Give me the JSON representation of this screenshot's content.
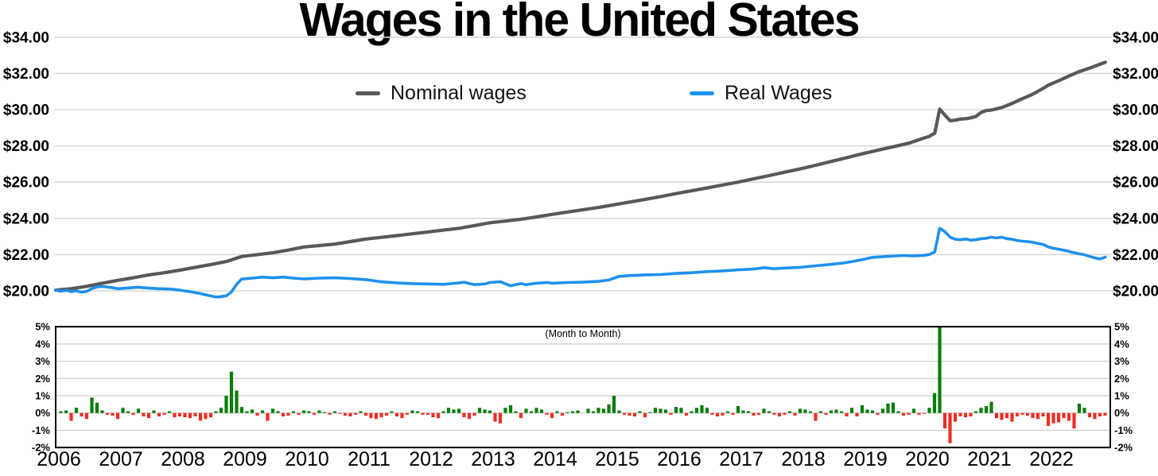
{
  "title": "Wages in the United States",
  "colors": {
    "nominal": "#58585a",
    "real": "#1e90ee",
    "positive": "#0a7d0a",
    "negative": "#ee2e24",
    "grid": "#d9d9d9",
    "bar_grid": "#cdcdcd",
    "border": "#000000"
  },
  "chart_data": [
    {
      "type": "line",
      "title": "Wages in the United States",
      "ylim": [
        20,
        34
      ],
      "x_range": [
        2006,
        2023
      ],
      "grid": "horizontal",
      "legend_position": "top-inside",
      "yticks": [
        {
          "v": 20,
          "label": "$20.00"
        },
        {
          "v": 22,
          "label": "$22.00"
        },
        {
          "v": 24,
          "label": "$24.00"
        },
        {
          "v": 26,
          "label": "$26.00"
        },
        {
          "v": 28,
          "label": "$28.00"
        },
        {
          "v": 30,
          "label": "$30.00"
        },
        {
          "v": 32,
          "label": "$32.00"
        },
        {
          "v": 34,
          "label": "$34.00"
        }
      ],
      "years": [
        2006,
        2007,
        2008,
        2009,
        2010,
        2011,
        2012,
        2013,
        2014,
        2015,
        2016,
        2017,
        2018,
        2019,
        2020,
        2021,
        2022
      ],
      "series": [
        {
          "name": "Nominal wages",
          "color": "nominal",
          "anchors": [
            [
              2006.0,
              20.04
            ],
            [
              2006.25,
              20.12
            ],
            [
              2006.5,
              20.25
            ],
            [
              2006.75,
              20.42
            ],
            [
              2007.0,
              20.58
            ],
            [
              2007.25,
              20.72
            ],
            [
              2007.5,
              20.88
            ],
            [
              2007.75,
              21.0
            ],
            [
              2008.0,
              21.14
            ],
            [
              2008.25,
              21.3
            ],
            [
              2008.5,
              21.45
            ],
            [
              2008.75,
              21.62
            ],
            [
              2009.0,
              21.9
            ],
            [
              2009.25,
              22.0
            ],
            [
              2009.5,
              22.1
            ],
            [
              2009.75,
              22.25
            ],
            [
              2010.0,
              22.42
            ],
            [
              2010.25,
              22.5
            ],
            [
              2010.5,
              22.58
            ],
            [
              2010.75,
              22.72
            ],
            [
              2011.0,
              22.86
            ],
            [
              2011.25,
              22.95
            ],
            [
              2011.5,
              23.05
            ],
            [
              2011.75,
              23.15
            ],
            [
              2012.0,
              23.25
            ],
            [
              2012.25,
              23.35
            ],
            [
              2012.5,
              23.45
            ],
            [
              2012.75,
              23.6
            ],
            [
              2013.0,
              23.76
            ],
            [
              2013.25,
              23.85
            ],
            [
              2013.5,
              23.95
            ],
            [
              2013.75,
              24.08
            ],
            [
              2014.0,
              24.22
            ],
            [
              2014.25,
              24.35
            ],
            [
              2014.5,
              24.48
            ],
            [
              2014.75,
              24.6
            ],
            [
              2015.0,
              24.75
            ],
            [
              2015.25,
              24.9
            ],
            [
              2015.5,
              25.05
            ],
            [
              2015.75,
              25.2
            ],
            [
              2016.0,
              25.37
            ],
            [
              2016.25,
              25.52
            ],
            [
              2016.5,
              25.68
            ],
            [
              2016.75,
              25.84
            ],
            [
              2017.0,
              26.0
            ],
            [
              2017.25,
              26.18
            ],
            [
              2017.5,
              26.36
            ],
            [
              2017.75,
              26.55
            ],
            [
              2018.0,
              26.73
            ],
            [
              2018.25,
              26.93
            ],
            [
              2018.5,
              27.14
            ],
            [
              2018.75,
              27.35
            ],
            [
              2019.0,
              27.56
            ],
            [
              2019.25,
              27.76
            ],
            [
              2019.5,
              27.95
            ],
            [
              2019.75,
              28.15
            ],
            [
              2020.0,
              28.44
            ],
            [
              2020.08,
              28.52
            ],
            [
              2020.17,
              28.7
            ],
            [
              2020.25,
              30.03
            ],
            [
              2020.33,
              29.72
            ],
            [
              2020.42,
              29.38
            ],
            [
              2020.5,
              29.42
            ],
            [
              2020.58,
              29.48
            ],
            [
              2020.67,
              29.5
            ],
            [
              2020.75,
              29.55
            ],
            [
              2020.83,
              29.62
            ],
            [
              2020.92,
              29.85
            ],
            [
              2021.0,
              29.95
            ],
            [
              2021.08,
              29.98
            ],
            [
              2021.17,
              30.05
            ],
            [
              2021.25,
              30.12
            ],
            [
              2021.42,
              30.35
            ],
            [
              2021.58,
              30.6
            ],
            [
              2021.75,
              30.85
            ],
            [
              2021.92,
              31.18
            ],
            [
              2022.0,
              31.35
            ],
            [
              2022.17,
              31.6
            ],
            [
              2022.33,
              31.85
            ],
            [
              2022.5,
              32.1
            ],
            [
              2022.67,
              32.3
            ],
            [
              2022.83,
              32.5
            ],
            [
              2022.92,
              32.62
            ]
          ]
        },
        {
          "name": "Real Wages",
          "color": "real",
          "anchors": [
            [
              2006.0,
              20.04
            ],
            [
              2006.08,
              19.98
            ],
            [
              2006.17,
              20.03
            ],
            [
              2006.25,
              19.95
            ],
            [
              2006.33,
              20.0
            ],
            [
              2006.42,
              19.93
            ],
            [
              2006.5,
              19.97
            ],
            [
              2006.58,
              20.12
            ],
            [
              2006.67,
              20.22
            ],
            [
              2006.75,
              20.24
            ],
            [
              2006.83,
              20.21
            ],
            [
              2006.92,
              20.17
            ],
            [
              2007.0,
              20.12
            ],
            [
              2007.17,
              20.16
            ],
            [
              2007.33,
              20.2
            ],
            [
              2007.5,
              20.15
            ],
            [
              2007.67,
              20.12
            ],
            [
              2007.83,
              20.1
            ],
            [
              2008.0,
              20.04
            ],
            [
              2008.17,
              19.95
            ],
            [
              2008.33,
              19.85
            ],
            [
              2008.5,
              19.72
            ],
            [
              2008.58,
              19.66
            ],
            [
              2008.67,
              19.68
            ],
            [
              2008.75,
              19.73
            ],
            [
              2008.83,
              19.92
            ],
            [
              2008.92,
              20.38
            ],
            [
              2009.0,
              20.65
            ],
            [
              2009.17,
              20.7
            ],
            [
              2009.33,
              20.76
            ],
            [
              2009.5,
              20.72
            ],
            [
              2009.67,
              20.76
            ],
            [
              2009.83,
              20.7
            ],
            [
              2010.0,
              20.66
            ],
            [
              2010.25,
              20.7
            ],
            [
              2010.5,
              20.72
            ],
            [
              2010.75,
              20.68
            ],
            [
              2011.0,
              20.62
            ],
            [
              2011.25,
              20.5
            ],
            [
              2011.5,
              20.44
            ],
            [
              2011.75,
              20.4
            ],
            [
              2012.0,
              20.38
            ],
            [
              2012.25,
              20.36
            ],
            [
              2012.5,
              20.44
            ],
            [
              2012.58,
              20.48
            ],
            [
              2012.75,
              20.34
            ],
            [
              2012.92,
              20.38
            ],
            [
              2013.0,
              20.46
            ],
            [
              2013.17,
              20.5
            ],
            [
              2013.33,
              20.28
            ],
            [
              2013.5,
              20.4
            ],
            [
              2013.58,
              20.34
            ],
            [
              2013.75,
              20.42
            ],
            [
              2013.92,
              20.46
            ],
            [
              2014.0,
              20.42
            ],
            [
              2014.25,
              20.46
            ],
            [
              2014.5,
              20.48
            ],
            [
              2014.75,
              20.52
            ],
            [
              2014.92,
              20.6
            ],
            [
              2015.08,
              20.8
            ],
            [
              2015.25,
              20.84
            ],
            [
              2015.5,
              20.88
            ],
            [
              2015.75,
              20.9
            ],
            [
              2016.0,
              20.96
            ],
            [
              2016.25,
              21.0
            ],
            [
              2016.5,
              21.06
            ],
            [
              2016.75,
              21.1
            ],
            [
              2017.0,
              21.16
            ],
            [
              2017.25,
              21.2
            ],
            [
              2017.42,
              21.28
            ],
            [
              2017.58,
              21.22
            ],
            [
              2017.75,
              21.26
            ],
            [
              2018.0,
              21.3
            ],
            [
              2018.25,
              21.38
            ],
            [
              2018.5,
              21.46
            ],
            [
              2018.75,
              21.56
            ],
            [
              2019.0,
              21.72
            ],
            [
              2019.17,
              21.85
            ],
            [
              2019.33,
              21.88
            ],
            [
              2019.5,
              21.92
            ],
            [
              2019.67,
              21.95
            ],
            [
              2019.83,
              21.93
            ],
            [
              2020.0,
              21.96
            ],
            [
              2020.08,
              22.0
            ],
            [
              2020.17,
              22.15
            ],
            [
              2020.25,
              23.45
            ],
            [
              2020.33,
              23.28
            ],
            [
              2020.42,
              22.95
            ],
            [
              2020.5,
              22.85
            ],
            [
              2020.58,
              22.82
            ],
            [
              2020.67,
              22.86
            ],
            [
              2020.75,
              22.8
            ],
            [
              2020.83,
              22.82
            ],
            [
              2020.92,
              22.88
            ],
            [
              2021.0,
              22.9
            ],
            [
              2021.08,
              22.96
            ],
            [
              2021.17,
              22.92
            ],
            [
              2021.25,
              22.96
            ],
            [
              2021.33,
              22.88
            ],
            [
              2021.42,
              22.84
            ],
            [
              2021.5,
              22.78
            ],
            [
              2021.58,
              22.74
            ],
            [
              2021.67,
              22.72
            ],
            [
              2021.75,
              22.68
            ],
            [
              2021.83,
              22.62
            ],
            [
              2021.92,
              22.56
            ],
            [
              2022.0,
              22.42
            ],
            [
              2022.08,
              22.35
            ],
            [
              2022.17,
              22.3
            ],
            [
              2022.25,
              22.24
            ],
            [
              2022.33,
              22.18
            ],
            [
              2022.42,
              22.1
            ],
            [
              2022.5,
              22.04
            ],
            [
              2022.58,
              22.0
            ],
            [
              2022.67,
              21.9
            ],
            [
              2022.75,
              21.82
            ],
            [
              2022.83,
              21.76
            ],
            [
              2022.92,
              21.86
            ]
          ]
        }
      ]
    },
    {
      "type": "bar",
      "title": "(Month to Month)",
      "start_month": "2006-02",
      "frequency": "monthly",
      "ylim": [
        -2,
        5
      ],
      "yticks": [
        {
          "v": 5,
          "label": "5%"
        },
        {
          "v": 4,
          "label": "4%"
        },
        {
          "v": 3,
          "label": "3%"
        },
        {
          "v": 2,
          "label": "2%"
        },
        {
          "v": 1,
          "label": "1%"
        },
        {
          "v": 0,
          "label": "0%"
        },
        {
          "v": -1,
          "label": "-1%"
        },
        {
          "v": -2,
          "label": "-2%"
        }
      ],
      "values": [
        0.1,
        0.15,
        -0.45,
        0.3,
        -0.2,
        -0.35,
        0.9,
        0.6,
        0.15,
        -0.1,
        -0.15,
        -0.35,
        0.3,
        0.1,
        -0.1,
        0.25,
        -0.2,
        -0.3,
        0.15,
        -0.2,
        -0.1,
        0.1,
        -0.25,
        -0.2,
        -0.25,
        -0.3,
        -0.2,
        -0.45,
        -0.35,
        -0.25,
        0.1,
        0.3,
        1.0,
        2.4,
        1.3,
        0.35,
        0.1,
        0.2,
        -0.15,
        0.15,
        -0.45,
        0.25,
        0.1,
        -0.2,
        -0.15,
        0.1,
        -0.1,
        0.15,
        0.1,
        -0.1,
        0.15,
        0.05,
        -0.1,
        0.1,
        -0.05,
        -0.15,
        -0.2,
        -0.1,
        0.1,
        -0.15,
        -0.3,
        -0.35,
        -0.25,
        -0.15,
        0.1,
        -0.2,
        -0.3,
        -0.1,
        0.15,
        0.1,
        -0.1,
        -0.1,
        -0.25,
        -0.3,
        0.1,
        0.3,
        0.2,
        0.25,
        -0.25,
        -0.35,
        -0.15,
        0.3,
        0.2,
        0.15,
        -0.5,
        -0.6,
        0.3,
        0.45,
        0.1,
        -0.3,
        0.25,
        0.1,
        0.3,
        0.2,
        -0.1,
        -0.3,
        0.1,
        -0.15,
        0.05,
        0.1,
        0.15,
        0.0,
        0.25,
        0.1,
        0.3,
        0.25,
        0.5,
        1.0,
        0.15,
        -0.1,
        -0.15,
        -0.2,
        0.1,
        -0.25,
        0.05,
        0.3,
        0.25,
        0.2,
        -0.1,
        0.35,
        0.3,
        -0.15,
        0.1,
        0.3,
        0.45,
        0.3,
        -0.1,
        -0.2,
        -0.15,
        0.1,
        -0.1,
        0.4,
        0.15,
        0.1,
        -0.15,
        -0.1,
        0.25,
        0.1,
        -0.1,
        -0.2,
        -0.1,
        0.1,
        -0.15,
        0.25,
        0.2,
        0.1,
        -0.45,
        0.1,
        -0.1,
        0.15,
        0.2,
        0.1,
        -0.2,
        0.3,
        -0.2,
        0.45,
        0.2,
        0.15,
        -0.1,
        0.25,
        0.55,
        0.6,
        0.1,
        -0.15,
        -0.1,
        0.25,
        -0.1,
        -0.05,
        0.3,
        1.15,
        5.9,
        -0.9,
        -1.75,
        -0.5,
        -0.2,
        -0.25,
        -0.2,
        0.1,
        0.3,
        0.4,
        0.65,
        -0.3,
        -0.4,
        -0.3,
        -0.5,
        -0.2,
        -0.1,
        -0.15,
        -0.3,
        -0.35,
        -0.2,
        -0.75,
        -0.6,
        -0.55,
        -0.3,
        -0.45,
        -0.9,
        0.55,
        0.3,
        -0.25,
        -0.35,
        -0.2,
        -0.15
      ]
    }
  ]
}
